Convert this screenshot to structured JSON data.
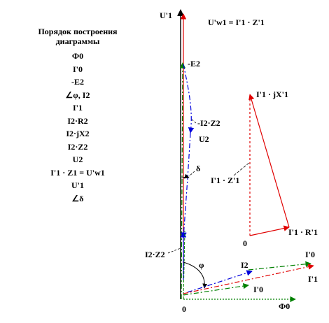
{
  "procedure": {
    "heading_line1": "Порядок построения",
    "heading_line2": "диаграммы",
    "steps": [
      "Ф0",
      "I'0",
      "-E2",
      "∠φ, I2",
      "I'1",
      "I2·R2",
      "I2·jX2",
      "I2·Z2",
      "U2",
      "I'1 · Z1 = U'w1",
      "U'1",
      "∠δ"
    ]
  },
  "labels": {
    "u1_axis": "U'1",
    "uw1_eq": "U'w1 = I'1 · Z'1",
    "minus_e2": "-E2",
    "i2z2_upper": "-I2·Z2",
    "u2": "U2",
    "delta": "δ",
    "i2z2_lower": "I2·Z2",
    "phi": "φ",
    "i2": "I2",
    "i0_right": "I'0",
    "i1_right": "I'1",
    "i0_inner": "I'0",
    "phi0": "Ф0",
    "origin": "0",
    "triangle_jx": "I'1 · jX'1",
    "triangle_z": "I'1 · Z'1",
    "triangle_r": "I'1 · R'1",
    "triangle_origin": "0"
  },
  "colors": {
    "black": "#000000",
    "red": "#e00000",
    "green": "#008000",
    "blue": "#0000dd"
  }
}
